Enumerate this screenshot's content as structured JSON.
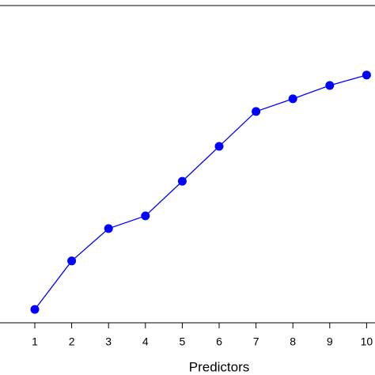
{
  "chart_data": {
    "type": "line",
    "x_label": "Predictors",
    "categories": [
      "1",
      "2",
      "3",
      "4",
      "5",
      "6",
      "7",
      "8",
      "9",
      "10"
    ],
    "values": [
      4.2,
      19.5,
      29.7,
      33.7,
      44.6,
      55.6,
      66.6,
      70.6,
      74.8,
      78.1
    ],
    "color": "#0000ff",
    "ylim": [
      0,
      100
    ]
  }
}
